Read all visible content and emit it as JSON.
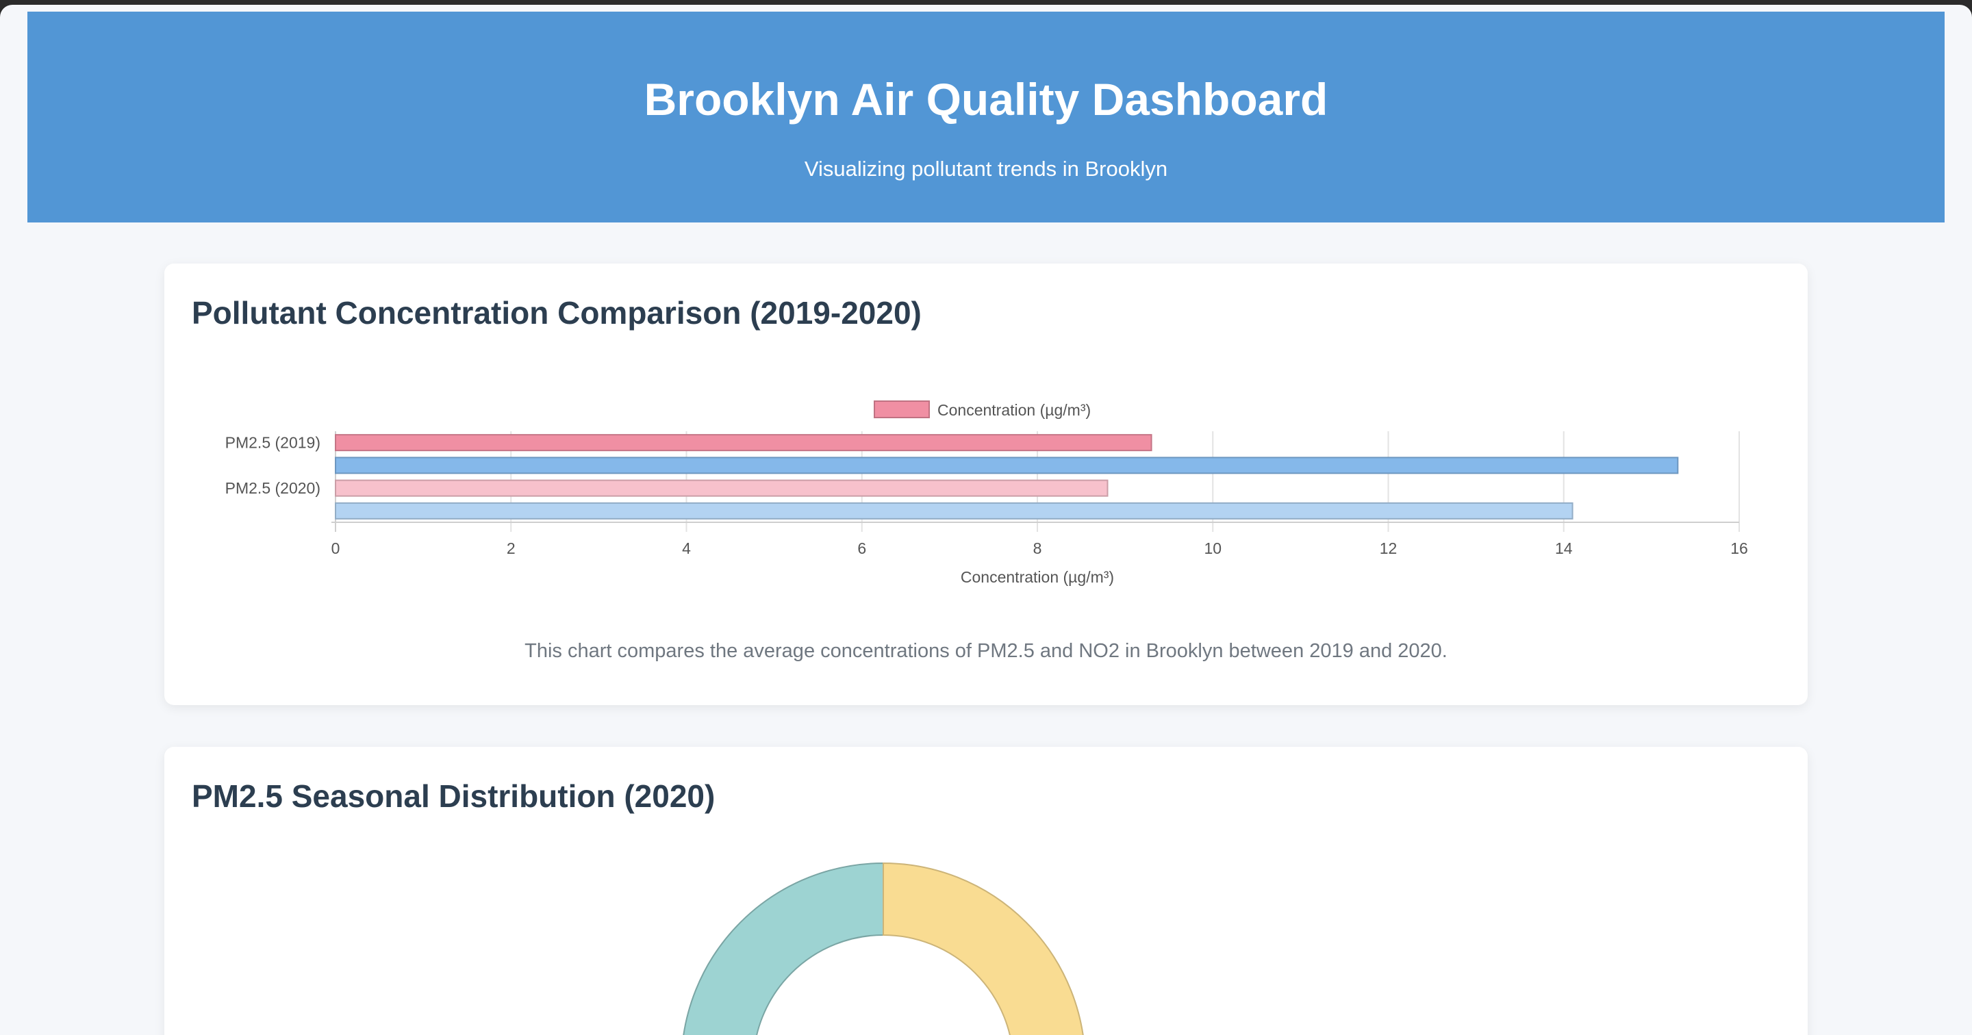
{
  "header": {
    "title": "Brooklyn Air Quality Dashboard",
    "subtitle": "Visualizing pollutant trends in Brooklyn"
  },
  "cards": [
    {
      "title": "Pollutant Concentration Comparison (2019-2020)",
      "description": "This chart compares the average concentrations of PM2.5 and NO2 in Brooklyn between 2019 and 2020."
    },
    {
      "title": "PM2.5 Seasonal Distribution (2020)"
    }
  ],
  "chart_data": [
    {
      "type": "bar",
      "orientation": "horizontal",
      "tick_labels_y": [
        "PM2.5 (2019)",
        "PM2.5 (2020)"
      ],
      "bars": [
        {
          "row": "PM2.5 (2019)",
          "value": 9.3,
          "color": "#f08fa3"
        },
        {
          "row": "",
          "value": 15.3,
          "color": "#85b8ea"
        },
        {
          "row": "PM2.5 (2020)",
          "value": 8.8,
          "color": "#f7c1cc"
        },
        {
          "row": "",
          "value": 14.1,
          "color": "#b3d3f2"
        }
      ],
      "legend": [
        {
          "label": "Concentration (µg/m³)",
          "color": "#f08fa3"
        }
      ],
      "legend_position": "top",
      "xlabel": "Concentration (µg/m³)",
      "xlim": [
        0,
        16
      ],
      "xticks": [
        0,
        2,
        4,
        6,
        8,
        10,
        12,
        14,
        16
      ],
      "grid": true
    },
    {
      "type": "pie",
      "variant": "doughnut",
      "slices": [
        {
          "color": "#9dd3d2",
          "label": ""
        },
        {
          "color": "#f9dc92",
          "label": ""
        }
      ]
    }
  ],
  "colors": {
    "header_bg": "#5296d5",
    "page_bg": "#f5f7fa",
    "title_text": "#2c3e50"
  }
}
